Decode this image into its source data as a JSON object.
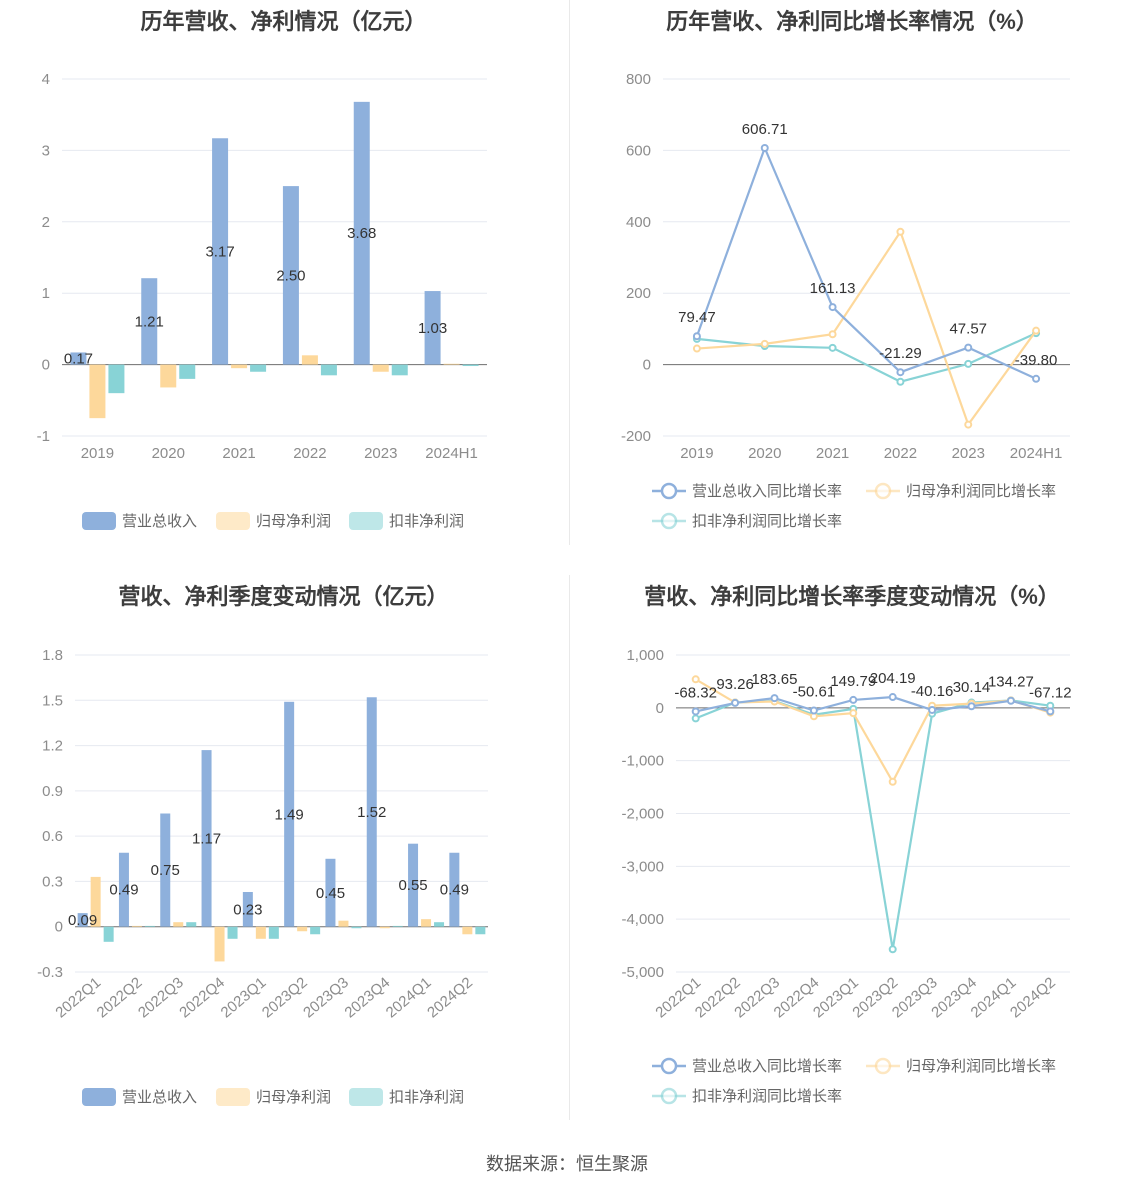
{
  "source_text": "数据来源：恒生聚源",
  "chart_data": [
    {
      "id": "annual-amounts",
      "type": "bar",
      "title": "历年营收、净利情况（亿元）",
      "categories": [
        "2019",
        "2020",
        "2021",
        "2022",
        "2023",
        "2024H1"
      ],
      "ylim": [
        -1,
        4
      ],
      "yticks": [
        -1,
        0,
        1,
        2,
        3,
        4
      ],
      "ytick_labels": [
        "-1",
        "0",
        "1",
        "2",
        "3",
        "4"
      ],
      "grid": true,
      "legend_position": "bottom",
      "series": [
        {
          "name": "营业总收入",
          "color": "#8eb0dc",
          "values": [
            0.17,
            1.21,
            3.17,
            2.5,
            3.68,
            1.03
          ],
          "labels": [
            "0.17",
            "1.21",
            "3.17",
            "2.50",
            "3.68",
            "1.03"
          ]
        },
        {
          "name": "归母净利润",
          "color": "#fdd89b",
          "values": [
            -0.75,
            -0.32,
            -0.05,
            0.13,
            -0.1,
            0.0
          ]
        },
        {
          "name": "扣非净利润",
          "color": "#88d3d6",
          "values": [
            -0.4,
            -0.2,
            -0.1,
            -0.15,
            -0.15,
            -0.02
          ]
        }
      ]
    },
    {
      "id": "annual-growth",
      "type": "line",
      "title": "历年营收、净利同比增长率情况（%）",
      "categories": [
        "2019",
        "2020",
        "2021",
        "2022",
        "2023",
        "2024H1"
      ],
      "ylim": [
        -200,
        800
      ],
      "yticks": [
        -200,
        0,
        200,
        400,
        600,
        800
      ],
      "ytick_labels": [
        "-200",
        "0",
        "200",
        "400",
        "600",
        "800"
      ],
      "grid": true,
      "legend_position": "bottom",
      "series": [
        {
          "name": "营业总收入同比增长率",
          "color": "#8eb0dc",
          "values": [
            79.47,
            606.71,
            161.13,
            -21.29,
            47.57,
            -39.8
          ],
          "labels": [
            "79.47",
            "606.71",
            "161.13",
            "-21.29",
            "47.57",
            "-39.80"
          ]
        },
        {
          "name": "归母净利润同比增长率",
          "color": "#fdd89b",
          "values": [
            45,
            58,
            85,
            372,
            -168,
            95
          ]
        },
        {
          "name": "扣非净利润同比增长率",
          "color": "#88d3d6",
          "values": [
            72,
            52,
            47,
            -48,
            2,
            88
          ]
        }
      ]
    },
    {
      "id": "quarterly-amounts",
      "type": "bar",
      "title": "营收、净利季度变动情况（亿元）",
      "categories": [
        "2022Q1",
        "2022Q2",
        "2022Q3",
        "2022Q4",
        "2023Q1",
        "2023Q2",
        "2023Q3",
        "2023Q4",
        "2024Q1",
        "2024Q2"
      ],
      "ylim": [
        -0.3,
        1.8
      ],
      "yticks": [
        -0.3,
        0,
        0.3,
        0.6,
        0.9,
        1.2,
        1.5,
        1.8
      ],
      "ytick_labels": [
        "-0.3",
        "0",
        "0.3",
        "0.6",
        "0.9",
        "1.2",
        "1.5",
        "1.8"
      ],
      "grid": true,
      "legend_position": "bottom",
      "series": [
        {
          "name": "营业总收入",
          "color": "#8eb0dc",
          "values": [
            0.09,
            0.49,
            0.75,
            1.17,
            0.23,
            1.49,
            0.45,
            1.52,
            0.55,
            0.49
          ],
          "labels": [
            "0.09",
            "0.49",
            "0.75",
            "1.17",
            "0.23",
            "1.49",
            "0.45",
            "1.52",
            "0.55",
            "0.49"
          ]
        },
        {
          "name": "归母净利润",
          "color": "#fdd89b",
          "values": [
            0.33,
            0.0,
            0.03,
            -0.23,
            -0.08,
            -0.03,
            0.04,
            -0.01,
            0.05,
            -0.05
          ]
        },
        {
          "name": "扣非净利润",
          "color": "#88d3d6",
          "values": [
            -0.1,
            0.0,
            0.03,
            -0.08,
            -0.08,
            -0.05,
            -0.01,
            0.0,
            0.03,
            -0.05
          ]
        }
      ]
    },
    {
      "id": "quarterly-growth",
      "type": "line",
      "title": "营收、净利同比增长率季度变动情况（%）",
      "categories": [
        "2022Q1",
        "2022Q2",
        "2022Q3",
        "2022Q4",
        "2023Q1",
        "2023Q2",
        "2023Q3",
        "2023Q4",
        "2024Q1",
        "2024Q2"
      ],
      "ylim": [
        -5000,
        1000
      ],
      "yticks": [
        -5000,
        -4000,
        -3000,
        -2000,
        -1000,
        0,
        1000
      ],
      "ytick_labels": [
        "-5,000",
        "-4,000",
        "-3,000",
        "-2,000",
        "-1,000",
        "0",
        "1,000"
      ],
      "grid": true,
      "legend_position": "bottom",
      "series": [
        {
          "name": "营业总收入同比增长率",
          "color": "#8eb0dc",
          "values": [
            -68.32,
            93.26,
            183.65,
            -50.61,
            149.79,
            204.19,
            -40.16,
            30.14,
            134.27,
            -67.12
          ],
          "labels": [
            "-68.32",
            "93.26",
            "183.65",
            "-50.61",
            "149.79",
            "204.19",
            "-40.16",
            "30.14",
            "134.27",
            "-67.12"
          ]
        },
        {
          "name": "归母净利润同比增长率",
          "color": "#fdd89b",
          "values": [
            540,
            100,
            120,
            -160,
            -100,
            -1400,
            40,
            80,
            140,
            -90
          ]
        },
        {
          "name": "扣非净利润同比增长率",
          "color": "#88d3d6",
          "values": [
            -200,
            100,
            130,
            -130,
            -20,
            -4570,
            -110,
            100,
            140,
            40
          ]
        }
      ]
    }
  ]
}
